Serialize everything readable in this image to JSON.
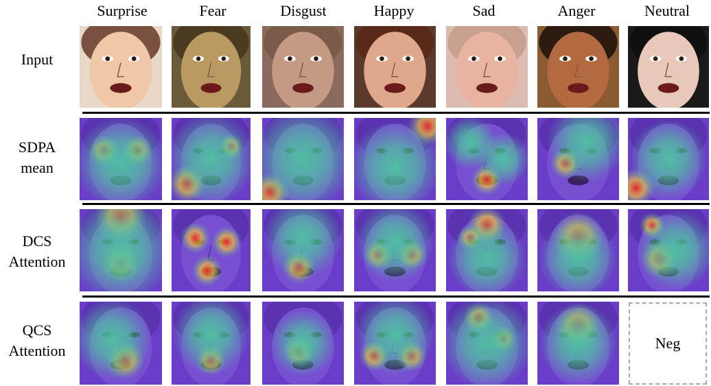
{
  "columns": [
    "Surprise",
    "Fear",
    "Disgust",
    "Happy",
    "Sad",
    "Anger",
    "Neutral"
  ],
  "rows": [
    {
      "label_line1": "Input",
      "label_line2": ""
    },
    {
      "label_line1": "SDPA",
      "label_line2": "mean"
    },
    {
      "label_line1": "DCS",
      "label_line2": "Attention"
    },
    {
      "label_line1": "QCS",
      "label_line2": "Attention"
    }
  ],
  "neg_label": "Neg",
  "colors": {
    "heat_low": "#6a3dc8",
    "heat_mid": "#4fc3a1",
    "heat_high": "#e8242a",
    "separator": "#000000",
    "dashed_border": "#a8a8a8"
  }
}
